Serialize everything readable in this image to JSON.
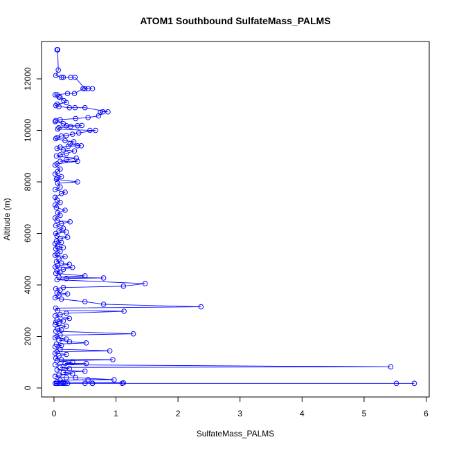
{
  "chart_data": {
    "type": "line",
    "title": "ATOM1 Southbound SulfateMass_PALMS",
    "xlabel": "SulfateMass_PALMS",
    "ylabel": "Altitude (m)",
    "xlim": [
      -0.2,
      6.05
    ],
    "ylim": [
      -350,
      13450
    ],
    "x_ticks": [
      0,
      1,
      2,
      3,
      4,
      5,
      6
    ],
    "y_ticks": [
      0,
      2000,
      4000,
      6000,
      8000,
      10000,
      12000
    ],
    "x_tick_labels": [
      "0",
      "1",
      "2",
      "3",
      "4",
      "5",
      "6"
    ],
    "y_tick_labels": [
      "0",
      "2000",
      "4000",
      "6000",
      "8000",
      "10000",
      "12000"
    ],
    "grid": false,
    "legend": "none",
    "markers": "open-circle",
    "series": [
      {
        "color": "#0000ff",
        "points": [
          [
            0.05,
            13130
          ],
          [
            0.06,
            13130
          ],
          [
            0.07,
            12340
          ],
          [
            0.03,
            12130
          ],
          [
            0.12,
            12060
          ],
          [
            0.15,
            12060
          ],
          [
            0.27,
            12060
          ],
          [
            0.34,
            12060
          ],
          [
            0.5,
            11620
          ],
          [
            0.55,
            11620
          ],
          [
            0.62,
            11620
          ],
          [
            0.47,
            11620
          ],
          [
            0.33,
            11430
          ],
          [
            0.22,
            11430
          ],
          [
            0.05,
            11380
          ],
          [
            0.02,
            11380
          ],
          [
            0.08,
            11300
          ],
          [
            0.1,
            11270
          ],
          [
            0.16,
            11150
          ],
          [
            0.2,
            11080
          ],
          [
            0.05,
            11020
          ],
          [
            0.03,
            10960
          ],
          [
            0.08,
            10920
          ],
          [
            0.25,
            10880
          ],
          [
            0.34,
            10880
          ],
          [
            0.5,
            10880
          ],
          [
            0.87,
            10720
          ],
          [
            0.79,
            10720
          ],
          [
            0.75,
            10700
          ],
          [
            0.72,
            10560
          ],
          [
            0.55,
            10500
          ],
          [
            0.35,
            10460
          ],
          [
            0.1,
            10420
          ],
          [
            0.03,
            10380
          ],
          [
            0.02,
            10340
          ],
          [
            0.15,
            10260
          ],
          [
            0.2,
            10180
          ],
          [
            0.38,
            10180
          ],
          [
            0.45,
            10190
          ],
          [
            0.27,
            10150
          ],
          [
            0.08,
            10100
          ],
          [
            0.06,
            10050
          ],
          [
            0.58,
            10000
          ],
          [
            0.67,
            10000
          ],
          [
            0.4,
            9900
          ],
          [
            0.3,
            9850
          ],
          [
            0.2,
            9800
          ],
          [
            0.12,
            9780
          ],
          [
            0.05,
            9720
          ],
          [
            0.03,
            9680
          ],
          [
            0.18,
            9600
          ],
          [
            0.32,
            9560
          ],
          [
            0.26,
            9480
          ],
          [
            0.44,
            9400
          ],
          [
            0.38,
            9400
          ],
          [
            0.23,
            9380
          ],
          [
            0.1,
            9350
          ],
          [
            0.05,
            9300
          ],
          [
            0.15,
            9240
          ],
          [
            0.33,
            9200
          ],
          [
            0.2,
            9100
          ],
          [
            0.1,
            9050
          ],
          [
            0.04,
            9000
          ],
          [
            0.36,
            8920
          ],
          [
            0.2,
            8860
          ],
          [
            0.1,
            8800
          ],
          [
            0.38,
            8800
          ],
          [
            0.05,
            8700
          ],
          [
            0.02,
            8650
          ],
          [
            0.1,
            8500
          ],
          [
            0.06,
            8400
          ],
          [
            0.02,
            8300
          ],
          [
            0.12,
            8200
          ],
          [
            0.05,
            8150
          ],
          [
            0.04,
            8100
          ],
          [
            0.38,
            8000
          ],
          [
            0.06,
            7950
          ],
          [
            0.1,
            7800
          ],
          [
            0.02,
            7700
          ],
          [
            0.18,
            7600
          ],
          [
            0.12,
            7550
          ],
          [
            0.02,
            7400
          ],
          [
            0.05,
            7300
          ],
          [
            0.1,
            7200
          ],
          [
            0.02,
            7100
          ],
          [
            0.04,
            7000
          ],
          [
            0.18,
            6900
          ],
          [
            0.06,
            6800
          ],
          [
            0.1,
            6700
          ],
          [
            0.02,
            6600
          ],
          [
            0.05,
            6500
          ],
          [
            0.26,
            6450
          ],
          [
            0.12,
            6380
          ],
          [
            0.03,
            6300
          ],
          [
            0.15,
            6200
          ],
          [
            0.08,
            6100
          ],
          [
            0.2,
            6050
          ],
          [
            0.03,
            6000
          ],
          [
            0.05,
            5900
          ],
          [
            0.22,
            5850
          ],
          [
            0.1,
            5800
          ],
          [
            0.04,
            5700
          ],
          [
            0.12,
            5650
          ],
          [
            0.02,
            5600
          ],
          [
            0.06,
            5500
          ],
          [
            0.15,
            5450
          ],
          [
            0.03,
            5400
          ],
          [
            0.1,
            5300
          ],
          [
            0.05,
            5200
          ],
          [
            0.02,
            5150
          ],
          [
            0.18,
            5100
          ],
          [
            0.08,
            5000
          ],
          [
            0.04,
            4900
          ],
          [
            0.12,
            4850
          ],
          [
            0.25,
            4800
          ],
          [
            0.06,
            4750
          ],
          [
            0.02,
            4700
          ],
          [
            0.3,
            4680
          ],
          [
            0.15,
            4600
          ],
          [
            0.05,
            4550
          ],
          [
            0.1,
            4500
          ],
          [
            0.03,
            4450
          ],
          [
            0.5,
            4350
          ],
          [
            0.08,
            4300
          ],
          [
            0.8,
            4270
          ],
          [
            0.2,
            4250
          ],
          [
            0.05,
            4200
          ],
          [
            1.47,
            4050
          ],
          [
            1.12,
            3950
          ],
          [
            0.15,
            3900
          ],
          [
            0.03,
            3850
          ],
          [
            0.1,
            3800
          ],
          [
            0.05,
            3700
          ],
          [
            0.22,
            3650
          ],
          [
            0.08,
            3600
          ],
          [
            0.02,
            3500
          ],
          [
            0.12,
            3450
          ],
          [
            0.5,
            3350
          ],
          [
            0.8,
            3250
          ],
          [
            2.37,
            3150
          ],
          [
            0.03,
            3100
          ],
          [
            0.06,
            3000
          ],
          [
            1.13,
            2980
          ],
          [
            0.2,
            2900
          ],
          [
            0.1,
            2850
          ],
          [
            0.02,
            2800
          ],
          [
            0.25,
            2700
          ],
          [
            0.05,
            2650
          ],
          [
            0.15,
            2600
          ],
          [
            0.03,
            2550
          ],
          [
            0.08,
            2500
          ],
          [
            0.02,
            2450
          ],
          [
            0.2,
            2400
          ],
          [
            0.06,
            2300
          ],
          [
            0.12,
            2250
          ],
          [
            0.03,
            2200
          ],
          [
            1.28,
            2100
          ],
          [
            0.1,
            2050
          ],
          [
            0.05,
            2000
          ],
          [
            0.02,
            1950
          ],
          [
            0.2,
            1900
          ],
          [
            0.08,
            1850
          ],
          [
            0.25,
            1800
          ],
          [
            0.52,
            1750
          ],
          [
            0.04,
            1700
          ],
          [
            0.12,
            1650
          ],
          [
            0.02,
            1600
          ],
          [
            0.1,
            1500
          ],
          [
            0.9,
            1440
          ],
          [
            0.05,
            1400
          ],
          [
            0.02,
            1350
          ],
          [
            0.2,
            1300
          ],
          [
            0.08,
            1250
          ],
          [
            0.03,
            1150
          ],
          [
            0.12,
            1100
          ],
          [
            0.95,
            1100
          ],
          [
            0.05,
            1050
          ],
          [
            0.3,
            1000
          ],
          [
            0.18,
            950
          ],
          [
            0.52,
            950
          ],
          [
            0.02,
            900
          ],
          [
            5.43,
            820
          ],
          [
            0.1,
            800
          ],
          [
            0.25,
            750
          ],
          [
            0.05,
            700
          ],
          [
            0.5,
            650
          ],
          [
            0.15,
            600
          ],
          [
            0.3,
            550
          ],
          [
            0.08,
            500
          ],
          [
            0.02,
            450
          ],
          [
            0.2,
            400
          ],
          [
            0.35,
            400
          ],
          [
            0.97,
            320
          ],
          [
            0.55,
            320
          ],
          [
            0.1,
            300
          ],
          [
            0.05,
            250
          ],
          [
            0.15,
            220
          ],
          [
            1.12,
            200
          ],
          [
            1.1,
            180
          ],
          [
            5.81,
            180
          ],
          [
            5.52,
            180
          ],
          [
            0.62,
            180
          ],
          [
            0.5,
            180
          ],
          [
            0.22,
            180
          ],
          [
            0.18,
            180
          ],
          [
            0.12,
            180
          ],
          [
            0.08,
            180
          ],
          [
            0.04,
            180
          ],
          [
            0.02,
            180
          ],
          [
            0.05,
            180
          ],
          [
            0.15,
            180
          ],
          [
            0.62,
            180
          ],
          [
            0.62,
            180
          ]
        ]
      }
    ]
  }
}
